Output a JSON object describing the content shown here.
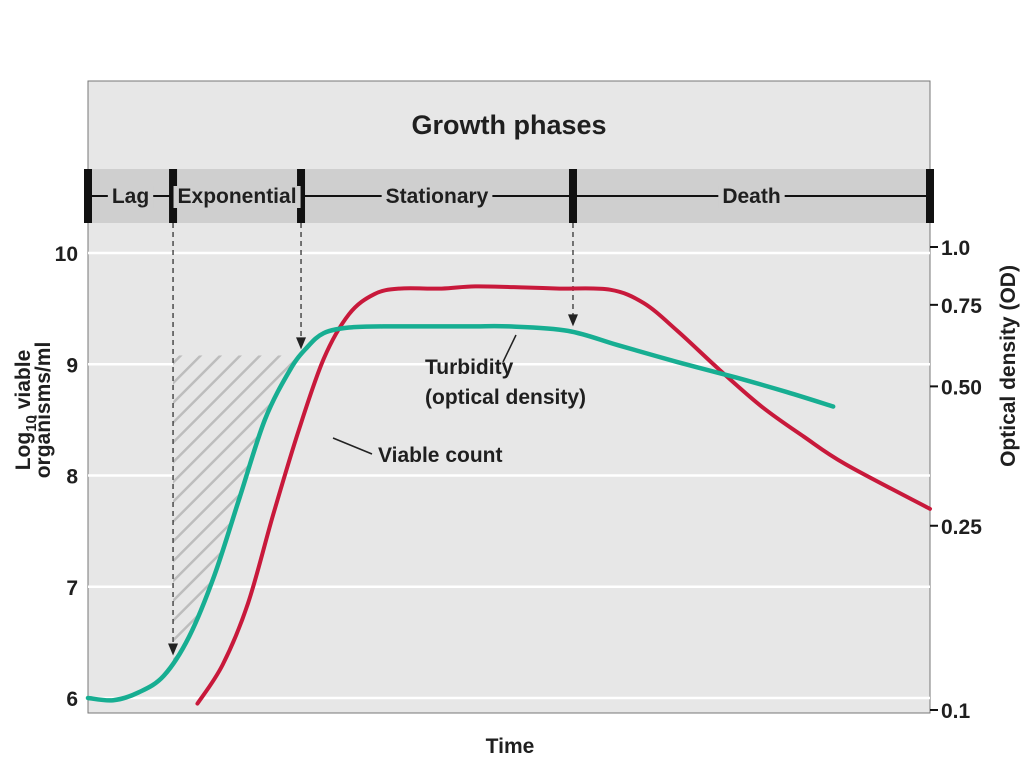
{
  "chart_data": {
    "type": "line",
    "title": "Growth phases",
    "xlabel": "Time",
    "ylabel": "Log10 viable organisms/ml",
    "ylabel_parts": {
      "line1_base": "Log",
      "line1_sub": "10",
      "line1_rest": " viable",
      "line2": "organisms/ml"
    },
    "y2label": "Optical density (OD)",
    "ylim": [
      5.9,
      10.2
    ],
    "y_ticks": [
      "6",
      "7",
      "8",
      "9",
      "10"
    ],
    "y2_scale": "log",
    "y2_ticks": [
      {
        "label": "1.0",
        "value": 1.0
      },
      {
        "label": "0.75",
        "value": 0.75
      },
      {
        "label": "0.50",
        "value": 0.5
      },
      {
        "label": "0.25",
        "value": 0.25
      },
      {
        "label": "0.1",
        "value": 0.1
      }
    ],
    "grid": true,
    "phases": [
      {
        "name": "Lag",
        "start": 0,
        "end": 10.1
      },
      {
        "name": "Exponential",
        "start": 10.1,
        "end": 25.3
      },
      {
        "name": "Stationary",
        "start": 25.3,
        "end": 57.6
      },
      {
        "name": "Death",
        "start": 57.6,
        "end": 100
      }
    ],
    "series": [
      {
        "name": "Viable count",
        "color": "#c8193b",
        "points": [
          [
            13,
            5.95
          ],
          [
            16,
            6.3
          ],
          [
            19,
            6.85
          ],
          [
            22,
            7.65
          ],
          [
            25,
            8.4
          ],
          [
            28,
            9.05
          ],
          [
            31,
            9.45
          ],
          [
            34,
            9.63
          ],
          [
            37,
            9.68
          ],
          [
            42,
            9.68
          ],
          [
            46,
            9.7
          ],
          [
            52,
            9.69
          ],
          [
            56,
            9.68
          ],
          [
            62,
            9.67
          ],
          [
            66,
            9.55
          ],
          [
            70,
            9.3
          ],
          [
            75,
            8.95
          ],
          [
            80,
            8.62
          ],
          [
            85,
            8.35
          ],
          [
            90,
            8.1
          ],
          [
            100,
            7.7
          ]
        ]
      },
      {
        "name": "Turbidity (optical density)",
        "color": "#17ae92",
        "points": [
          [
            0,
            6.0
          ],
          [
            3,
            5.98
          ],
          [
            6,
            6.05
          ],
          [
            9,
            6.2
          ],
          [
            12,
            6.55
          ],
          [
            15,
            7.1
          ],
          [
            18,
            7.8
          ],
          [
            21,
            8.5
          ],
          [
            24,
            8.95
          ],
          [
            26,
            9.15
          ],
          [
            28,
            9.28
          ],
          [
            31,
            9.33
          ],
          [
            35,
            9.34
          ],
          [
            45,
            9.34
          ],
          [
            50,
            9.34
          ],
          [
            57,
            9.3
          ],
          [
            63,
            9.17
          ],
          [
            70,
            9.02
          ],
          [
            77,
            8.88
          ],
          [
            83,
            8.75
          ],
          [
            88.5,
            8.62
          ]
        ]
      }
    ],
    "annotations": [
      {
        "text": [
          "Turbidity",
          "(optical density)"
        ]
      },
      {
        "text": [
          "Viable count"
        ]
      }
    ]
  }
}
